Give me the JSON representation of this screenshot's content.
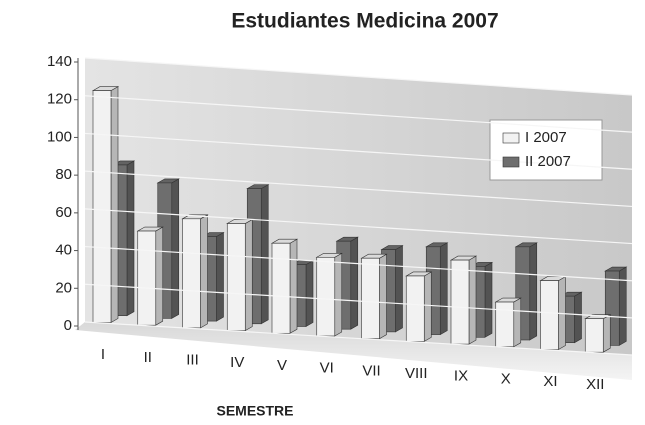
{
  "chart_data": {
    "type": "bar3d",
    "title": "Estudiantes Medicina 2007",
    "x_label": "SEMESTRE",
    "categories": [
      "I",
      "II",
      "III",
      "IV",
      "V",
      "VI",
      "VII",
      "VIII",
      "IX",
      "X",
      "XI",
      "XII"
    ],
    "series": [
      {
        "name": "I  2007",
        "color": "#f2f2f2",
        "values": [
          123,
          50,
          58,
          57,
          48,
          42,
          43,
          35,
          45,
          24,
          37,
          18
        ]
      },
      {
        "name": "II 2007",
        "color": "#6e6e6e",
        "values": [
          80,
          72,
          45,
          72,
          33,
          47,
          44,
          47,
          38,
          50,
          25,
          40
        ]
      }
    ],
    "ylim": [
      0,
      140
    ],
    "yticks": [
      0,
      20,
      40,
      60,
      80,
      100,
      120,
      140
    ],
    "grid": true,
    "legend": "right"
  }
}
